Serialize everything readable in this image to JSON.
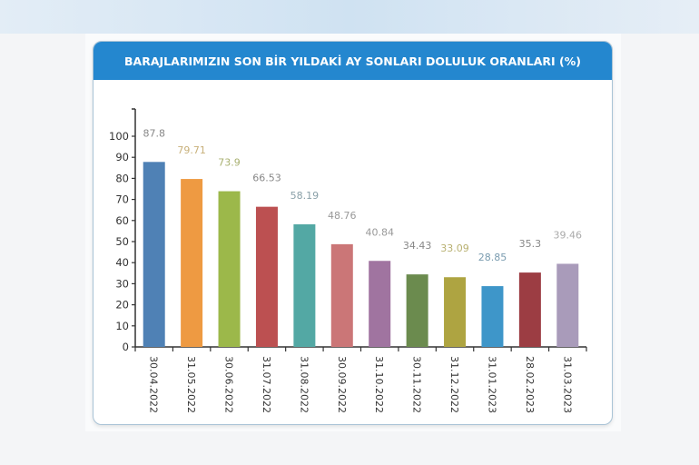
{
  "chart_data": {
    "type": "bar",
    "title": "BARAJLARIMIZIN SON BİR YILDAKİ AY SONLARI DOLULUK ORANLARI (%)",
    "xlabel": "",
    "ylabel": "",
    "ylim": [
      0,
      100
    ],
    "yticks": [
      0,
      10,
      20,
      30,
      40,
      50,
      60,
      70,
      80,
      90,
      100
    ],
    "grid": false,
    "categories": [
      "30.04.2022",
      "31.05.2022",
      "30.06.2022",
      "31.07.2022",
      "31.08.2022",
      "30.09.2022",
      "31.10.2022",
      "30.11.2022",
      "31.12.2022",
      "31.01.2023",
      "28.02.2023",
      "31.03.2023"
    ],
    "values": [
      87.8,
      79.71,
      73.9,
      66.53,
      58.19,
      48.76,
      40.84,
      34.43,
      33.09,
      28.85,
      35.3,
      39.46
    ],
    "labels": [
      "87.8",
      "79.71",
      "73.9",
      "66.53",
      "58.19",
      "48.76",
      "40.84",
      "34.43",
      "33.09",
      "28.85",
      "35.3",
      "39.46"
    ],
    "colors": [
      "#4f81b5",
      "#ee9a42",
      "#9cb84a",
      "#bc5051",
      "#53a8a4",
      "#cb7677",
      "#a074a0",
      "#6b8b4e",
      "#aea441",
      "#3e96c9",
      "#9c3d43",
      "#a99bba"
    ],
    "label_colors": [
      "#888888",
      "#c8b07a",
      "#a8b070",
      "#888888",
      "#8aa0a8",
      "#999999",
      "#999999",
      "#888888",
      "#b8b070",
      "#7a9cb0",
      "#888888",
      "#aaaaaa"
    ]
  }
}
